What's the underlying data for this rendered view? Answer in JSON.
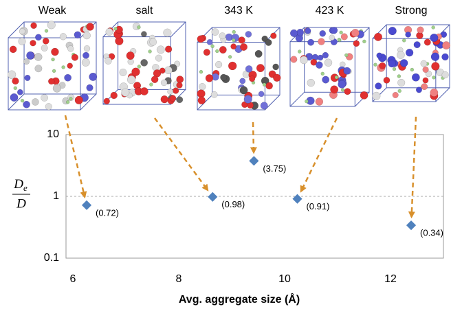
{
  "chart_data": {
    "type": "scatter",
    "annotations": [
      "Weak",
      "salt",
      "343 K",
      "423 K",
      "Strong"
    ],
    "x": [
      6.26,
      8.64,
      9.42,
      10.24,
      12.39
    ],
    "values": [
      0.72,
      0.98,
      3.75,
      0.91,
      0.34
    ],
    "value_labels": [
      "(0.72)",
      "(0.98)",
      "(3.75)",
      "(0.91)",
      "(0.34)"
    ],
    "color": "#4f81bd",
    "xlabel": "Avg. aggregate size (Å)",
    "ylabel": {
      "numerator": {
        "base": "D",
        "subscript": "e"
      },
      "denominator": "D"
    },
    "xlim": [
      5.87,
      13
    ],
    "xticks": [
      6,
      8,
      10,
      12
    ],
    "ylim": [
      0.1,
      10
    ],
    "yticks": [
      0.1,
      1,
      10
    ],
    "log_y": true,
    "grid": true
  }
}
